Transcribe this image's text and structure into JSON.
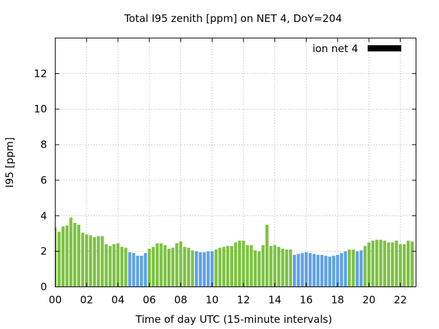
{
  "chart_data": {
    "type": "bar",
    "title": "Total I95 zenith [ppm] on NET 4, DoY=204",
    "xlabel": "Time of day UTC (15-minute intervals)",
    "ylabel": "I95 [ppm]",
    "xlim": [
      0,
      23
    ],
    "ylim": [
      0,
      14
    ],
    "xtick_values": [
      0,
      2,
      4,
      6,
      8,
      10,
      12,
      14,
      16,
      18,
      20,
      22
    ],
    "xtick_labels": [
      "00",
      "02",
      "04",
      "06",
      "08",
      "10",
      "12",
      "14",
      "16",
      "18",
      "20",
      "22"
    ],
    "ytick_values": [
      0,
      2,
      4,
      6,
      8,
      10,
      12
    ],
    "ytick_labels": [
      "0",
      "2",
      "4",
      "6",
      "8",
      "10",
      "12"
    ],
    "grid": true,
    "legend": {
      "label": "ion net 4",
      "position": "top-right",
      "swatch_color": "#000000"
    },
    "interval_hours": 0.25,
    "color_normal": "#7dc242",
    "color_low": "#5fa0e8",
    "series": [
      {
        "values": [
          3.35,
          3.1,
          3.4,
          3.45,
          3.9,
          3.6,
          3.5,
          3.05,
          2.95,
          2.9,
          2.8,
          2.85,
          2.85,
          2.4,
          2.3,
          2.4,
          2.45,
          2.25,
          2.2,
          1.95,
          1.9,
          1.75,
          1.75,
          1.9,
          2.15,
          2.25,
          2.45,
          2.45,
          2.35,
          2.15,
          2.2,
          2.45,
          2.55,
          2.25,
          2.2,
          2.05,
          2.0,
          1.95,
          1.95,
          2.0,
          2.0,
          2.1,
          2.2,
          2.25,
          2.3,
          2.3,
          2.5,
          2.6,
          2.6,
          2.35,
          2.35,
          2.05,
          2.0,
          2.35,
          3.5,
          2.3,
          2.35,
          2.25,
          2.15,
          2.1,
          2.1,
          1.8,
          1.85,
          1.9,
          1.95,
          1.9,
          1.85,
          1.8,
          1.8,
          1.75,
          1.7,
          1.75,
          1.8,
          1.9,
          2.0,
          2.1,
          2.1,
          2.0,
          2.05,
          2.3,
          2.5,
          2.6,
          2.65,
          2.65,
          2.6,
          2.5,
          2.5,
          2.6,
          2.4,
          2.4,
          2.6,
          2.55
        ],
        "categories": [
          "normal",
          "normal",
          "normal",
          "normal",
          "normal",
          "normal",
          "normal",
          "normal",
          "normal",
          "normal",
          "normal",
          "normal",
          "normal",
          "normal",
          "normal",
          "normal",
          "normal",
          "normal",
          "normal",
          "low",
          "low",
          "low",
          "low",
          "low",
          "normal",
          "normal",
          "normal",
          "normal",
          "normal",
          "normal",
          "normal",
          "normal",
          "normal",
          "normal",
          "normal",
          "normal",
          "low",
          "low",
          "low",
          "low",
          "low",
          "normal",
          "normal",
          "normal",
          "normal",
          "normal",
          "normal",
          "normal",
          "normal",
          "normal",
          "normal",
          "normal",
          "normal",
          "normal",
          "normal",
          "normal",
          "normal",
          "normal",
          "normal",
          "normal",
          "normal",
          "low",
          "low",
          "low",
          "low",
          "low",
          "low",
          "low",
          "low",
          "low",
          "low",
          "low",
          "low",
          "low",
          "low",
          "normal",
          "normal",
          "low",
          "low",
          "normal",
          "normal",
          "normal",
          "normal",
          "normal",
          "normal",
          "normal",
          "normal",
          "normal",
          "normal",
          "normal",
          "normal",
          "normal"
        ]
      }
    ]
  }
}
